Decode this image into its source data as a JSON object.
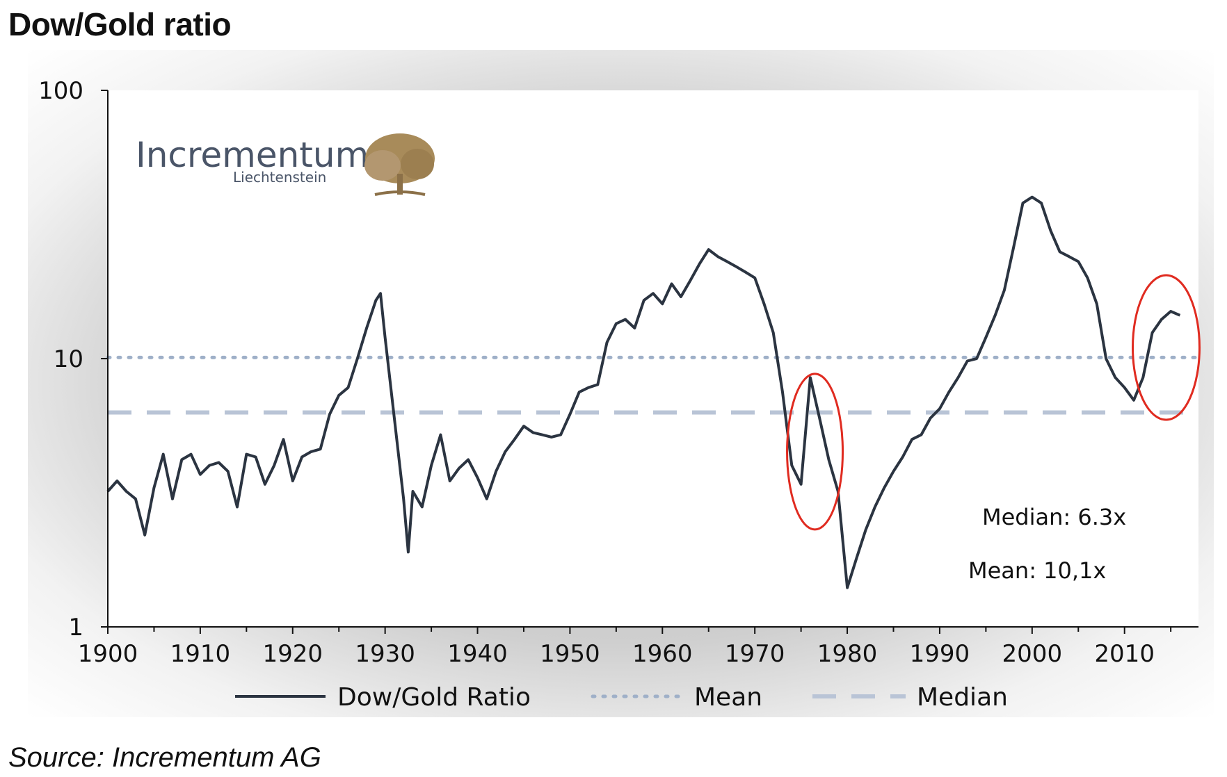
{
  "page_title": "Dow/Gold ratio",
  "source_text": "Source: Incrementum AG",
  "logo": {
    "name": "Incrementum",
    "sub": "Liechtenstein",
    "icon": "tree-icon",
    "color": "#a88b5a"
  },
  "colors": {
    "series": "#2b3441",
    "mean": "#9fb0c8",
    "median": "#b9c4d6",
    "highlight": "#e02b20",
    "plot_bg": "#ffffff",
    "frame": "#c4c4c4"
  },
  "chart_data": {
    "type": "line",
    "title": "Dow/Gold ratio",
    "xlabel": "",
    "ylabel": "",
    "xlim": [
      1900,
      2018
    ],
    "ylim": [
      1,
      100
    ],
    "yscale": "log",
    "x_ticks": [
      1900,
      1910,
      1920,
      1930,
      1940,
      1950,
      1960,
      1970,
      1980,
      1990,
      2000,
      2010
    ],
    "y_ticks": [
      "1",
      "10",
      "100"
    ],
    "legend": {
      "position": "bottom",
      "entries": [
        "Dow/Gold Ratio",
        "Mean",
        "Median"
      ]
    },
    "series": [
      {
        "name": "Dow/Gold Ratio",
        "x": [
          1900,
          1901,
          1902,
          1903,
          1904,
          1905,
          1906,
          1907,
          1908,
          1909,
          1910,
          1911,
          1912,
          1913,
          1914,
          1915,
          1916,
          1917,
          1918,
          1919,
          1920,
          1921,
          1922,
          1923,
          1924,
          1925,
          1926,
          1927,
          1928,
          1929,
          1929.5,
          1930,
          1931,
          1932,
          1932.5,
          1933,
          1934,
          1935,
          1936,
          1937,
          1938,
          1939,
          1940,
          1941,
          1942,
          1943,
          1944,
          1945,
          1946,
          1947,
          1948,
          1949,
          1950,
          1951,
          1952,
          1953,
          1954,
          1955,
          1956,
          1957,
          1958,
          1959,
          1960,
          1961,
          1962,
          1963,
          1964,
          1965,
          1966,
          1967,
          1968,
          1969,
          1970,
          1971,
          1972,
          1973,
          1974,
          1975,
          1976,
          1977,
          1978,
          1979,
          1980,
          1981,
          1982,
          1983,
          1984,
          1985,
          1986,
          1987,
          1988,
          1989,
          1990,
          1991,
          1992,
          1993,
          1994,
          1995,
          1996,
          1997,
          1998,
          1999,
          2000,
          2001,
          2002,
          2003,
          2004,
          2005,
          2006,
          2007,
          2008,
          2009,
          2010,
          2011,
          2012,
          2013,
          2014,
          2015,
          2016
        ],
        "values": [
          3.2,
          3.5,
          3.2,
          3.0,
          2.2,
          3.3,
          4.4,
          3.0,
          4.2,
          4.4,
          3.7,
          4.0,
          4.1,
          3.8,
          2.8,
          4.4,
          4.3,
          3.4,
          4.0,
          5.0,
          3.5,
          4.3,
          4.5,
          4.6,
          6.2,
          7.3,
          7.8,
          10.0,
          13.0,
          16.5,
          17.5,
          12.0,
          6.0,
          3.0,
          1.9,
          3.2,
          2.8,
          4.0,
          5.2,
          3.5,
          3.9,
          4.2,
          3.6,
          3.0,
          3.8,
          4.5,
          5.0,
          5.6,
          5.3,
          5.2,
          5.1,
          5.2,
          6.2,
          7.5,
          7.8,
          8.0,
          11.5,
          13.5,
          14.0,
          13.0,
          16.5,
          17.5,
          16.0,
          19.0,
          17.0,
          19.5,
          22.5,
          25.5,
          24.0,
          23.0,
          22.0,
          21.0,
          20.0,
          16.0,
          12.5,
          7.5,
          4.0,
          3.4,
          8.5,
          6.0,
          4.2,
          3.2,
          1.4,
          1.8,
          2.3,
          2.8,
          3.3,
          3.8,
          4.3,
          5.0,
          5.2,
          6.0,
          6.5,
          7.5,
          8.5,
          9.8,
          10.0,
          12.0,
          14.5,
          18.0,
          26.0,
          38.0,
          40.0,
          38.0,
          30.0,
          25.0,
          24.0,
          23.0,
          20.0,
          16.0,
          10.0,
          8.5,
          7.8,
          7.0,
          8.5,
          12.5,
          14.0,
          15.0,
          14.5
        ]
      },
      {
        "name": "Mean",
        "constant": 10.1
      },
      {
        "name": "Median",
        "constant": 6.3
      }
    ],
    "annotations": {
      "median_label": "Median:  6.3x",
      "mean_label": "Mean:  10,1x",
      "highlights": [
        {
          "center_year": 1976.5,
          "center_value": 4.5
        },
        {
          "center_year": 2014.5,
          "center_value": 11.0
        }
      ]
    }
  }
}
